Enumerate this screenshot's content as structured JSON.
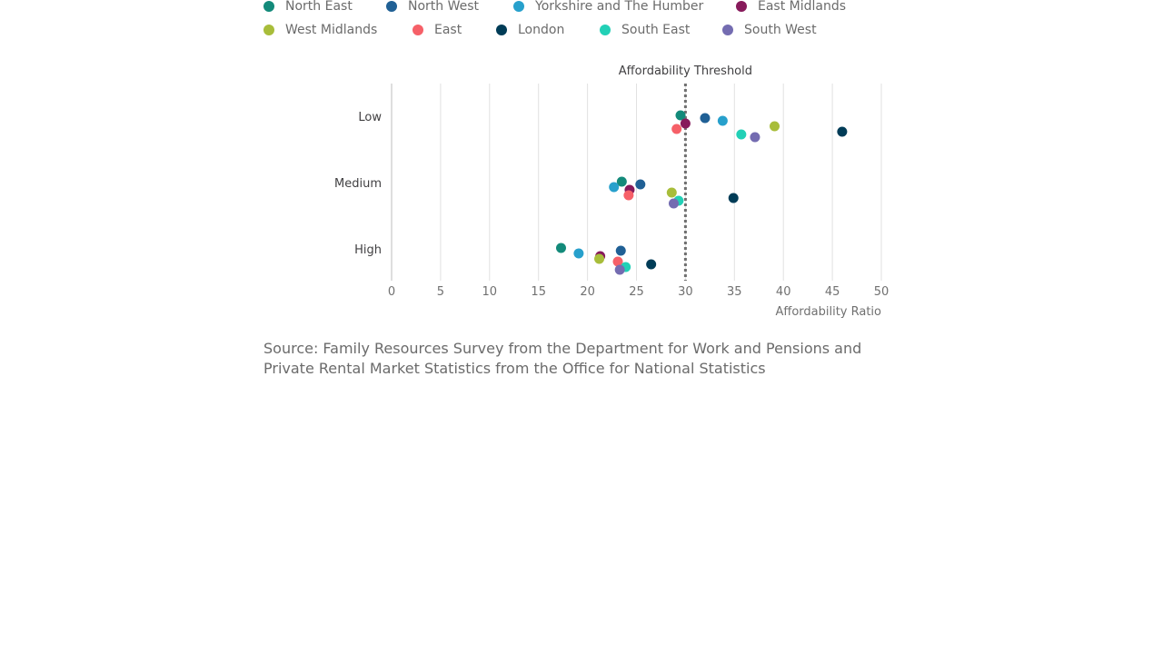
{
  "colors": {
    "North East": "#138a7a",
    "North West": "#206095",
    "Yorkshire and The Humber": "#27a0cc",
    "East Midlands": "#871a5b",
    "West Midlands": "#a8bd3a",
    "East": "#f66068",
    "London": "#003c57",
    "South East": "#22d0b6",
    "South West": "#746cb1"
  },
  "chart_data": {
    "type": "scatter",
    "title": "",
    "xlabel": "Affordability Ratio",
    "ylabel": "",
    "xlim": [
      0,
      50
    ],
    "xticks": [
      "0",
      "5",
      "10",
      "15",
      "20",
      "25",
      "30",
      "35",
      "40",
      "45",
      "50"
    ],
    "categories": [
      "Low",
      "Medium",
      "High"
    ],
    "grid": true,
    "legend_position": "top",
    "annotation": {
      "label": "Affordability Threshold",
      "x": 30
    },
    "series": [
      {
        "name": "North East",
        "values": [
          29.5,
          23.5,
          17.3
        ]
      },
      {
        "name": "North West",
        "values": [
          32.0,
          25.4,
          23.4
        ]
      },
      {
        "name": "Yorkshire and The Humber",
        "values": [
          33.8,
          22.7,
          19.1
        ]
      },
      {
        "name": "East Midlands",
        "values": [
          30.0,
          24.3,
          21.3
        ]
      },
      {
        "name": "West Midlands",
        "values": [
          39.1,
          28.6,
          21.2
        ]
      },
      {
        "name": "East",
        "values": [
          29.1,
          24.2,
          23.1
        ]
      },
      {
        "name": "London",
        "values": [
          46.0,
          34.9,
          26.5
        ]
      },
      {
        "name": "South East",
        "values": [
          35.7,
          29.3,
          23.9
        ]
      },
      {
        "name": "South West",
        "values": [
          37.1,
          28.8,
          23.3
        ]
      }
    ]
  },
  "source": {
    "text": "Source: Family Resources Survey from the Department for Work and Pensions and Private Rental Market Statistics from the Office for National Statistics"
  }
}
